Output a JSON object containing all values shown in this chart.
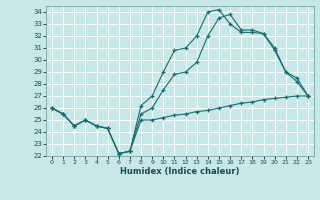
{
  "background_color": "#c8e8e8",
  "grid_color": "#ffffff",
  "line_color": "#1a6b6b",
  "xlabel": "Humidex (Indice chaleur)",
  "xlim": [
    -0.5,
    23.5
  ],
  "ylim": [
    22,
    34.5
  ],
  "yticks": [
    22,
    23,
    24,
    25,
    26,
    27,
    28,
    29,
    30,
    31,
    32,
    33,
    34
  ],
  "xticks": [
    0,
    1,
    2,
    3,
    4,
    5,
    6,
    7,
    8,
    9,
    10,
    11,
    12,
    13,
    14,
    15,
    16,
    17,
    18,
    19,
    20,
    21,
    22,
    23
  ],
  "series": [
    {
      "x": [
        0,
        1,
        2,
        3,
        4,
        5,
        6,
        7,
        8,
        9,
        10,
        11,
        12,
        13,
        14,
        15,
        16,
        17,
        18,
        19,
        20,
        21,
        22,
        23
      ],
      "y": [
        26,
        25.5,
        24.5,
        25,
        24.5,
        24.3,
        22.2,
        22.4,
        25.0,
        25.0,
        25.2,
        25.4,
        25.5,
        25.7,
        25.8,
        26.0,
        26.2,
        26.4,
        26.5,
        26.7,
        26.8,
        26.9,
        27.0,
        27.0
      ]
    },
    {
      "x": [
        0,
        1,
        2,
        3,
        4,
        5,
        6,
        7,
        8,
        9,
        10,
        11,
        12,
        13,
        14,
        15,
        16,
        17,
        18,
        19,
        20,
        21,
        22,
        23
      ],
      "y": [
        26,
        25.5,
        24.5,
        25,
        24.5,
        24.3,
        22.2,
        22.4,
        25.5,
        26.0,
        27.5,
        28.8,
        29.0,
        29.8,
        32.0,
        33.5,
        33.8,
        32.5,
        32.5,
        32.2,
        31.0,
        29.0,
        28.5,
        27.0
      ]
    },
    {
      "x": [
        0,
        1,
        2,
        3,
        4,
        5,
        6,
        7,
        8,
        9,
        10,
        11,
        12,
        13,
        14,
        15,
        16,
        17,
        18,
        19,
        20,
        21,
        22,
        23
      ],
      "y": [
        26,
        25.5,
        24.5,
        25,
        24.5,
        24.3,
        22.2,
        22.4,
        26.2,
        27.0,
        29.0,
        30.8,
        31.0,
        32.0,
        34.0,
        34.2,
        33.0,
        32.3,
        32.3,
        32.2,
        30.8,
        29.0,
        28.2,
        27.0
      ]
    }
  ]
}
